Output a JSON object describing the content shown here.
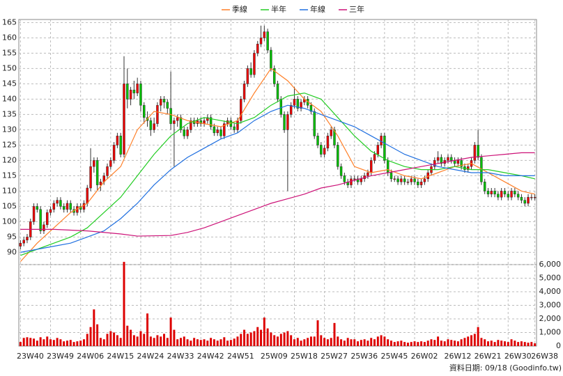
{
  "chart_data": {
    "type": "candlestick",
    "legend_position": "top",
    "grid": true,
    "up_color": "#ee0000",
    "down_color": "#00c000",
    "volume_color": "#dd0000",
    "xlim": [
      -0.5,
      154.5
    ],
    "xticks": [
      {
        "value": 0,
        "label": "23W40"
      },
      {
        "value": 9,
        "label": "23W49"
      },
      {
        "value": 18,
        "label": "24W06"
      },
      {
        "value": 27,
        "label": "24W15"
      },
      {
        "value": 36,
        "label": "24W24"
      },
      {
        "value": 45,
        "label": "24W33"
      },
      {
        "value": 54,
        "label": "24W42"
      },
      {
        "value": 63,
        "label": "24W51"
      },
      {
        "value": 73,
        "label": "25W09"
      },
      {
        "value": 82,
        "label": "25W18"
      },
      {
        "value": 91,
        "label": "25W27"
      },
      {
        "value": 100,
        "label": "25W36"
      },
      {
        "value": 109,
        "label": "25W45"
      },
      {
        "value": 118,
        "label": "26W02"
      },
      {
        "value": 128,
        "label": "26W12"
      },
      {
        "value": 137,
        "label": "26W21"
      },
      {
        "value": 146,
        "label": "26W30"
      },
      {
        "value": 154,
        "label": "26W38"
      }
    ],
    "ylim": [
      86,
      166
    ],
    "yticks": [
      90,
      95,
      100,
      105,
      110,
      115,
      120,
      125,
      130,
      135,
      140,
      145,
      150,
      155,
      160,
      165
    ],
    "y2lim": [
      0,
      6000
    ],
    "y2ticks": [
      0,
      {
        "value": 1000,
        "label": "1,000"
      },
      {
        "value": 2000,
        "label": "2,000"
      },
      {
        "value": 3000,
        "label": "3,000"
      },
      {
        "value": 4000,
        "label": "4,000"
      },
      {
        "value": 5000,
        "label": "5,000"
      },
      {
        "value": 6000,
        "label": "6,000"
      }
    ],
    "candles": [
      [
        92,
        94,
        91,
        93
      ],
      [
        93,
        95,
        92,
        94
      ],
      [
        94,
        96,
        93,
        95
      ],
      [
        95,
        101,
        94,
        100
      ],
      [
        100,
        106,
        99,
        105
      ],
      [
        105,
        106,
        103,
        104
      ],
      [
        104,
        105,
        96,
        97
      ],
      [
        97,
        100,
        96,
        99
      ],
      [
        99,
        104,
        98,
        103
      ],
      [
        103,
        105,
        102,
        104
      ],
      [
        104,
        107,
        103,
        106
      ],
      [
        106,
        108,
        105,
        107
      ],
      [
        107,
        108,
        104,
        105
      ],
      [
        105,
        106,
        103,
        104
      ],
      [
        104,
        107,
        103,
        106
      ],
      [
        106,
        107,
        103,
        104
      ],
      [
        104,
        105,
        102,
        103
      ],
      [
        103,
        106,
        102,
        105
      ],
      [
        105,
        106,
        103,
        104
      ],
      [
        104,
        107,
        103,
        106
      ],
      [
        106,
        112,
        105,
        111
      ],
      [
        111,
        124,
        110,
        118
      ],
      [
        118,
        121,
        116,
        120
      ],
      [
        120,
        121,
        110,
        112
      ],
      [
        112,
        114,
        110,
        113
      ],
      [
        113,
        116,
        112,
        115
      ],
      [
        115,
        119,
        114,
        118
      ],
      [
        118,
        121,
        117,
        120
      ],
      [
        120,
        126,
        119,
        125
      ],
      [
        125,
        129,
        124,
        128
      ],
      [
        128,
        129,
        121,
        122
      ],
      [
        122,
        154,
        121,
        145
      ],
      [
        145,
        150,
        137,
        140
      ],
      [
        140,
        144,
        138,
        143
      ],
      [
        143,
        146,
        140,
        142
      ],
      [
        142,
        147,
        141,
        145
      ],
      [
        145,
        146,
        136,
        138
      ],
      [
        138,
        139,
        132,
        134
      ],
      [
        134,
        136,
        131,
        133
      ],
      [
        133,
        134,
        128,
        130
      ],
      [
        130,
        134,
        129,
        132
      ],
      [
        132,
        139,
        131,
        138
      ],
      [
        138,
        141,
        136,
        140
      ],
      [
        140,
        141,
        137,
        139
      ],
      [
        139,
        140,
        135,
        137
      ],
      [
        137,
        149,
        130,
        132
      ],
      [
        132,
        134,
        118,
        133
      ],
      [
        133,
        135,
        131,
        134
      ],
      [
        134,
        135,
        129,
        130
      ],
      [
        130,
        131,
        127,
        128
      ],
      [
        128,
        131,
        127,
        130
      ],
      [
        130,
        134,
        129,
        133
      ],
      [
        133,
        134,
        131,
        132
      ],
      [
        132,
        134,
        131,
        133
      ],
      [
        133,
        134,
        131,
        132
      ],
      [
        132,
        134,
        131,
        133
      ],
      [
        133,
        135,
        132,
        134
      ],
      [
        134,
        135,
        130,
        131
      ],
      [
        131,
        132,
        128,
        129
      ],
      [
        129,
        131,
        128,
        130
      ],
      [
        130,
        131,
        127,
        128
      ],
      [
        128,
        133,
        127,
        132
      ],
      [
        132,
        134,
        131,
        133
      ],
      [
        133,
        134,
        130,
        131
      ],
      [
        131,
        132,
        129,
        130
      ],
      [
        130,
        134,
        129,
        133
      ],
      [
        133,
        141,
        132,
        140
      ],
      [
        140,
        146,
        139,
        145
      ],
      [
        145,
        151,
        144,
        150
      ],
      [
        150,
        152,
        147,
        148
      ],
      [
        148,
        156,
        147,
        155
      ],
      [
        155,
        159,
        154,
        158
      ],
      [
        158,
        164,
        157,
        160
      ],
      [
        160,
        164,
        159,
        162
      ],
      [
        162,
        163,
        155,
        156
      ],
      [
        156,
        157,
        149,
        150
      ],
      [
        150,
        151,
        144,
        145
      ],
      [
        145,
        146,
        139,
        140
      ],
      [
        140,
        141,
        134,
        135
      ],
      [
        135,
        136,
        129,
        130
      ],
      [
        130,
        136,
        110,
        135
      ],
      [
        135,
        139,
        134,
        138
      ],
      [
        138,
        144,
        137,
        140
      ],
      [
        140,
        141,
        136,
        137
      ],
      [
        137,
        140,
        136,
        139
      ],
      [
        139,
        141,
        138,
        140
      ],
      [
        140,
        141,
        137,
        138
      ],
      [
        138,
        139,
        135,
        136
      ],
      [
        136,
        137,
        127,
        128
      ],
      [
        128,
        129,
        124,
        125
      ],
      [
        125,
        126,
        121,
        122
      ],
      [
        122,
        125,
        121,
        124
      ],
      [
        124,
        129,
        123,
        128
      ],
      [
        128,
        131,
        127,
        130
      ],
      [
        130,
        131,
        124,
        125
      ],
      [
        125,
        126,
        117,
        118
      ],
      [
        118,
        119,
        114,
        115
      ],
      [
        115,
        116,
        112,
        113
      ],
      [
        113,
        114,
        111,
        112
      ],
      [
        112,
        115,
        111,
        114
      ],
      [
        114,
        115,
        113,
        114
      ],
      [
        114,
        115,
        112,
        113
      ],
      [
        113,
        115,
        112,
        114
      ],
      [
        114,
        116,
        113,
        115
      ],
      [
        115,
        117,
        114,
        116
      ],
      [
        116,
        121,
        115,
        120
      ],
      [
        120,
        123,
        119,
        122
      ],
      [
        122,
        126,
        121,
        125
      ],
      [
        125,
        129,
        124,
        128
      ],
      [
        128,
        129,
        119,
        120
      ],
      [
        120,
        121,
        115,
        116
      ],
      [
        116,
        117,
        113,
        114
      ],
      [
        114,
        115,
        113,
        114
      ],
      [
        114,
        115,
        112,
        113
      ],
      [
        113,
        115,
        112,
        114
      ],
      [
        114,
        115,
        112,
        113
      ],
      [
        113,
        114,
        112,
        113
      ],
      [
        113,
        115,
        112,
        114
      ],
      [
        114,
        115,
        112,
        113
      ],
      [
        113,
        114,
        111,
        112
      ],
      [
        112,
        114,
        111,
        113
      ],
      [
        113,
        115,
        112,
        114
      ],
      [
        114,
        117,
        113,
        116
      ],
      [
        116,
        119,
        115,
        118
      ],
      [
        118,
        121,
        117,
        120
      ],
      [
        120,
        123,
        119,
        121
      ],
      [
        121,
        122,
        118,
        119
      ],
      [
        119,
        121,
        118,
        120
      ],
      [
        120,
        122,
        119,
        121
      ],
      [
        121,
        122,
        119,
        120
      ],
      [
        120,
        121,
        118,
        119
      ],
      [
        119,
        121,
        118,
        120
      ],
      [
        120,
        121,
        117,
        118
      ],
      [
        118,
        119,
        116,
        117
      ],
      [
        117,
        119,
        116,
        118
      ],
      [
        118,
        121,
        117,
        120
      ],
      [
        120,
        126,
        119,
        125
      ],
      [
        125,
        130,
        120,
        121
      ],
      [
        121,
        122,
        112,
        113
      ],
      [
        113,
        114,
        109,
        110
      ],
      [
        110,
        111,
        108,
        109
      ],
      [
        109,
        111,
        108,
        110
      ],
      [
        110,
        111,
        108,
        109
      ],
      [
        109,
        110,
        107,
        108
      ],
      [
        108,
        111,
        107,
        110
      ],
      [
        110,
        111,
        108,
        109
      ],
      [
        109,
        110,
        107,
        108
      ],
      [
        108,
        111,
        107,
        110
      ],
      [
        110,
        111,
        108,
        109
      ],
      [
        109,
        110,
        107,
        108
      ],
      [
        108,
        109,
        106,
        107
      ],
      [
        107,
        108,
        105,
        106
      ],
      [
        106,
        109,
        105,
        108
      ],
      [
        108,
        109,
        107,
        108
      ],
      [
        108,
        109,
        107,
        108
      ]
    ],
    "volume": [
      300,
      600,
      650,
      600,
      550,
      400,
      650,
      500,
      700,
      500,
      450,
      600,
      500,
      350,
      400,
      450,
      300,
      350,
      400,
      500,
      900,
      1400,
      2700,
      1600,
      600,
      500,
      900,
      1100,
      1000,
      800,
      600,
      6200,
      1500,
      1200,
      800,
      700,
      1100,
      900,
      2400,
      700,
      600,
      800,
      700,
      900,
      600,
      2100,
      1200,
      500,
      600,
      700,
      500,
      400,
      600,
      500,
      450,
      500,
      400,
      600,
      500,
      400,
      500,
      650,
      400,
      450,
      550,
      700,
      900,
      1200,
      900,
      1000,
      1100,
      1400,
      1200,
      2100,
      1300,
      1000,
      800,
      700,
      900,
      1000,
      1100,
      800,
      500,
      600,
      400,
      500,
      600,
      700,
      700,
      1900,
      800,
      600,
      500,
      600,
      1700,
      700,
      500,
      400,
      600,
      500,
      500,
      350,
      450,
      500,
      400,
      600,
      500,
      700,
      800,
      700,
      500,
      400,
      300,
      350,
      400,
      300,
      250,
      300,
      350,
      300,
      350,
      300,
      400,
      500,
      450,
      700,
      400,
      350,
      500,
      450,
      400,
      350,
      500,
      600,
      700,
      800,
      900,
      1400,
      600,
      500,
      350,
      400,
      300,
      450,
      400,
      350,
      300,
      500,
      400,
      300,
      350,
      300,
      250,
      300,
      200
    ],
    "series": [
      {
        "name": "季線",
        "color": "#ff7f27",
        "x": [
          0,
          5,
          10,
          15,
          20,
          25,
          30,
          35,
          40,
          45,
          50,
          55,
          60,
          65,
          70,
          75,
          80,
          85,
          90,
          95,
          100,
          105,
          110,
          115,
          120,
          125,
          130,
          135,
          140,
          145,
          150,
          154
        ],
        "values": [
          87,
          93,
          98,
          103,
          106,
          113,
          118,
          130,
          136,
          135,
          133,
          132,
          131,
          133,
          142,
          150,
          146,
          140,
          136,
          128,
          118,
          116,
          117,
          115,
          114,
          116,
          118,
          119,
          116,
          113,
          110,
          109
        ]
      },
      {
        "name": "半年",
        "color": "#22cc22",
        "x": [
          0,
          5,
          10,
          15,
          20,
          25,
          30,
          35,
          40,
          45,
          50,
          55,
          60,
          65,
          70,
          75,
          80,
          85,
          90,
          95,
          100,
          105,
          110,
          115,
          120,
          125,
          130,
          135,
          140,
          145,
          150,
          154
        ],
        "values": [
          89,
          91,
          93,
          95,
          98,
          103,
          108,
          115,
          122,
          128,
          132,
          134,
          133,
          132,
          134,
          138,
          141,
          142,
          140,
          134,
          128,
          123,
          120,
          118,
          117,
          117,
          118,
          117,
          117,
          116,
          115,
          114
        ]
      },
      {
        "name": "年線",
        "color": "#1f6fe0",
        "x": [
          0,
          5,
          10,
          15,
          20,
          25,
          30,
          35,
          40,
          45,
          50,
          55,
          60,
          65,
          70,
          75,
          80,
          85,
          90,
          95,
          100,
          105,
          110,
          115,
          120,
          125,
          130,
          135,
          140,
          145,
          150,
          154
        ],
        "values": [
          90,
          91,
          92,
          93,
          95,
          97,
          101,
          106,
          112,
          117,
          121,
          124,
          127,
          129,
          133,
          136,
          138,
          137,
          135,
          133,
          131,
          128,
          125,
          122,
          120,
          118,
          117,
          116,
          116,
          115,
          115,
          115
        ]
      },
      {
        "name": "三年",
        "color": "#cc1177",
        "x": [
          0,
          10,
          20,
          30,
          35,
          45,
          50,
          55,
          60,
          65,
          70,
          75,
          80,
          85,
          90,
          95,
          100,
          105,
          110,
          115,
          120,
          125,
          130,
          135,
          140,
          145,
          150,
          154
        ],
        "values": [
          97.5,
          97.5,
          97,
          96,
          95.3,
          95.5,
          96.5,
          98,
          100,
          102,
          104,
          106,
          107.5,
          109,
          111,
          112,
          113.5,
          115,
          116,
          117,
          118,
          119,
          120,
          121,
          121.5,
          122,
          122.5,
          122.5
        ]
      }
    ],
    "footer": "資料日期: 09/18  (Goodinfo.tw)"
  }
}
